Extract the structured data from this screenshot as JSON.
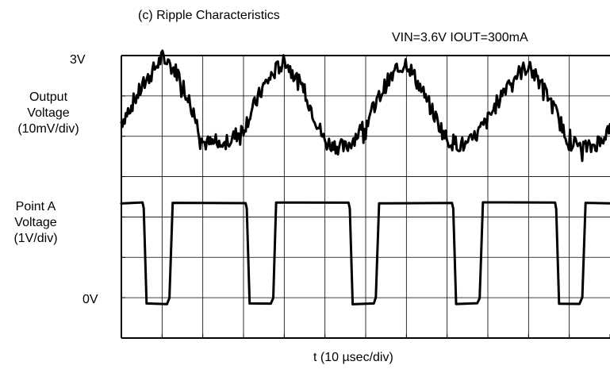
{
  "chart_data": {
    "type": "line",
    "title": "(c) Ripple Characteristics",
    "conditions": "VIN=3.6V   IOUT=300mA",
    "xlabel": "t (10 µsec/div)",
    "x_divisions": 12,
    "y_divisions": 7,
    "grid": true,
    "labels": {
      "top_reference": "3V",
      "bottom_reference": "0V",
      "output_label_lines": [
        "Output",
        "Voltage",
        "(10mV/div)"
      ],
      "pointa_label_lines": [
        "Point A",
        "Voltage",
        "(1V/div)"
      ]
    },
    "series": [
      {
        "key": "output",
        "unit": "div",
        "x": [
          0,
          0.5,
          1,
          1.4,
          1.7,
          2,
          2.5,
          3,
          3.5,
          4,
          4.5,
          5,
          5.5,
          6,
          6.5,
          7,
          7.5,
          8,
          8.5,
          9,
          9.5,
          10,
          10.5,
          11,
          11.5,
          12
        ],
        "y": [
          5.35,
          6.2,
          6.95,
          6.55,
          5.8,
          4.85,
          4.75,
          5.2,
          6.25,
          6.9,
          6.1,
          4.85,
          4.7,
          5.3,
          6.3,
          6.85,
          5.9,
          4.9,
          4.75,
          5.4,
          6.35,
          6.75,
          5.95,
          4.85,
          4.7,
          5.1
        ]
      },
      {
        "key": "point_a",
        "unit": "div",
        "x": [
          0,
          0.52,
          0.55,
          0.62,
          1.12,
          1.18,
          1.26,
          3.05,
          3.08,
          3.15,
          3.67,
          3.73,
          3.8,
          5.58,
          5.61,
          5.68,
          6.2,
          6.25,
          6.33,
          8.12,
          8.15,
          8.22,
          8.74,
          8.8,
          8.88,
          10.65,
          10.68,
          10.75,
          11.25,
          11.32,
          11.4,
          12
        ],
        "y": [
          3.35,
          3.35,
          3.2,
          0.85,
          0.85,
          1.0,
          3.35,
          3.35,
          3.2,
          0.85,
          0.85,
          1.0,
          3.35,
          3.35,
          3.2,
          0.85,
          0.85,
          1.0,
          3.35,
          3.35,
          3.2,
          0.85,
          0.85,
          1.0,
          3.35,
          3.35,
          3.2,
          0.85,
          0.85,
          1.0,
          3.35,
          3.35
        ]
      }
    ]
  }
}
